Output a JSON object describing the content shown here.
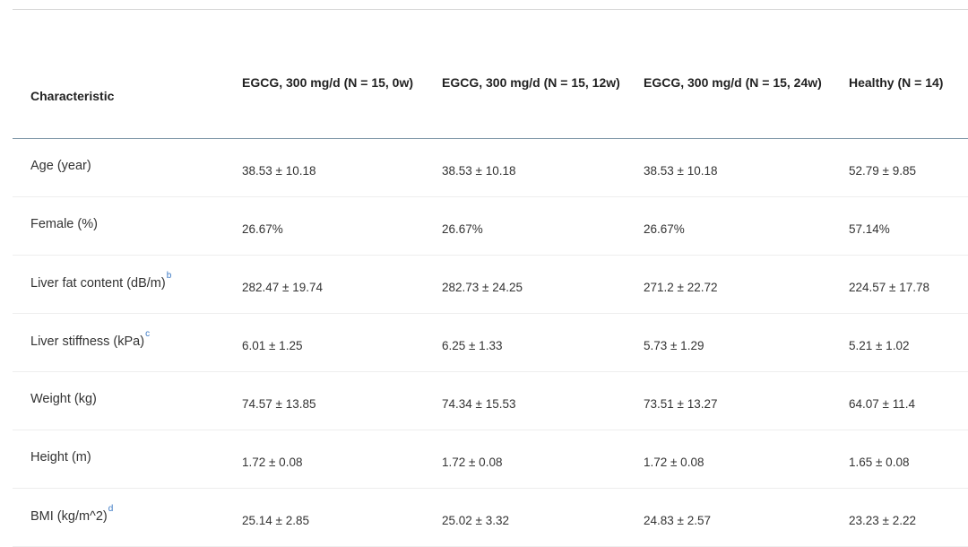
{
  "table": {
    "columns": [
      "Characteristic",
      "EGCG, 300 mg/d (N = 15, 0w)",
      "EGCG, 300 mg/d (N = 15, 12w)",
      "EGCG, 300 mg/d (N = 15, 24w)",
      "Healthy (N = 14)"
    ],
    "rows": [
      {
        "label": "Age (year)",
        "footnote": "",
        "cells": [
          "38.53 ± 10.18",
          "38.53 ± 10.18",
          "38.53 ± 10.18",
          "52.79 ± 9.85"
        ]
      },
      {
        "label": "Female (%)",
        "footnote": "",
        "cells": [
          "26.67%",
          "26.67%",
          "26.67%",
          "57.14%"
        ]
      },
      {
        "label": "Liver fat content (dB/m)",
        "footnote": "b",
        "cells": [
          "282.47 ± 19.74",
          "282.73 ± 24.25",
          "271.2 ± 22.72",
          "224.57 ± 17.78"
        ]
      },
      {
        "label": "Liver stiffness (kPa)",
        "footnote": "c",
        "cells": [
          "6.01 ± 1.25",
          "6.25 ± 1.33",
          "5.73 ± 1.29",
          "5.21 ± 1.02"
        ]
      },
      {
        "label": "Weight (kg)",
        "footnote": "",
        "cells": [
          "74.57 ± 13.85",
          "74.34 ± 15.53",
          "73.51 ± 13.27",
          "64.07 ± 11.4"
        ]
      },
      {
        "label": "Height (m)",
        "footnote": "",
        "cells": [
          "1.72 ± 0.08",
          "1.72 ± 0.08",
          "1.72 ± 0.08",
          "1.65 ± 0.08"
        ]
      },
      {
        "label": "BMI (kg/m^2)",
        "footnote": "d",
        "cells": [
          "25.14 ± 2.85",
          "25.02 ± 3.32",
          "24.83 ± 2.57",
          "23.23 ± 2.22"
        ]
      }
    ]
  }
}
